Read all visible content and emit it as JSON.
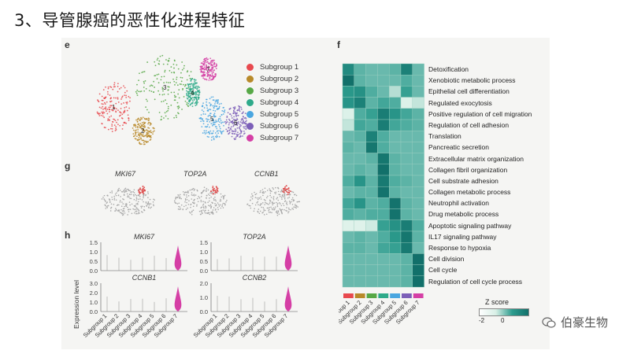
{
  "slide_title": "3、导管腺癌的恶性化进程特征",
  "panels": {
    "e": "e",
    "f": "f",
    "g": "g",
    "h": "h"
  },
  "legend": [
    {
      "label": "Subgroup 1",
      "color": "#e8494e"
    },
    {
      "label": "Subgroup 2",
      "color": "#b88a2a"
    },
    {
      "label": "Subgroup 3",
      "color": "#57a846"
    },
    {
      "label": "Subgroup 4",
      "color": "#2eaa8a"
    },
    {
      "label": "Subgroup 5",
      "color": "#4aa6e0"
    },
    {
      "label": "Subgroup 6",
      "color": "#7c5fb8"
    },
    {
      "label": "Subgroup 7",
      "color": "#d53fa5"
    }
  ],
  "cluster_labels": [
    "1",
    "2",
    "3",
    "4",
    "5",
    "6",
    "7"
  ],
  "genes_g": [
    "MKI67",
    "TOP2A",
    "CCNB1"
  ],
  "genes_h": [
    "MKI67",
    "TOP2A",
    "CCNB1",
    "CCNB2"
  ],
  "violin_yaxis": {
    "top": [
      "1.5",
      "1.0",
      "0.5",
      "0.0"
    ],
    "bottom_left": [
      "3.0",
      "2.0",
      "1.0",
      "0.0"
    ],
    "bottom_right": [
      "2.0",
      "1.0",
      "0.0"
    ]
  },
  "violin_ylabel": "Expression level",
  "subgroup_axis": [
    "Subgroup 1",
    "Subgroup 2",
    "Subgroup 3",
    "Subgroup 4",
    "Subgroup 5",
    "Subgroup 6",
    "Subgroup 7"
  ],
  "heatmap_terms": [
    "Detoxification",
    "Xenobiotic metabolic process",
    "Epithelial cell differentiation",
    "Regulated exocytosis",
    "Positive regulation of cell migration",
    "Regulation of cell adhesion",
    "Translation",
    "Pancreatic secretion",
    "Extracellular matrix organization",
    "Collagen fibril organization",
    "Cell substrate adhesion",
    "Collagen metabolic process",
    "Neutrophil activation",
    "Drug metabolic process",
    "Apoptotic signaling pathway",
    "IL17 signaling pathway",
    "Response to hypoxia",
    "Cell division",
    "Cell cycle",
    "Regulation of cell cycle process"
  ],
  "heatmap_values": [
    [
      1.2,
      0.3,
      0.2,
      0.2,
      0.3,
      1.5,
      0.2
    ],
    [
      2.0,
      0.3,
      0.2,
      0.2,
      0.2,
      0.4,
      0.2
    ],
    [
      0.8,
      1.0,
      0.4,
      0.2,
      -0.4,
      0.6,
      0.2
    ],
    [
      0.9,
      1.5,
      0.3,
      0.5,
      0.4,
      -0.8,
      -0.5
    ],
    [
      -0.8,
      0.4,
      0.6,
      1.6,
      0.9,
      0.5,
      0.3
    ],
    [
      -0.5,
      0.5,
      0.4,
      1.6,
      0.5,
      0.4,
      0.3
    ],
    [
      0.2,
      0.3,
      1.5,
      0.4,
      0.2,
      0.2,
      0.2
    ],
    [
      0.3,
      0.2,
      1.8,
      0.4,
      0.2,
      0.2,
      0.2
    ],
    [
      0.2,
      0.2,
      0.3,
      1.8,
      0.3,
      0.2,
      0.2
    ],
    [
      0.2,
      0.3,
      0.2,
      2.0,
      0.3,
      0.2,
      0.2
    ],
    [
      0.4,
      0.9,
      0.3,
      1.7,
      0.4,
      0.3,
      0.2
    ],
    [
      0.2,
      0.3,
      0.3,
      1.9,
      0.3,
      0.2,
      0.2
    ],
    [
      0.5,
      0.9,
      0.3,
      0.4,
      1.9,
      0.3,
      0.2
    ],
    [
      0.4,
      0.3,
      0.4,
      0.4,
      1.9,
      0.3,
      0.2
    ],
    [
      -0.9,
      -0.9,
      -0.6,
      0.6,
      1.0,
      1.6,
      0.4
    ],
    [
      0.2,
      0.3,
      0.2,
      0.4,
      0.8,
      1.8,
      0.3
    ],
    [
      0.3,
      0.3,
      0.2,
      0.5,
      0.6,
      1.7,
      0.2
    ],
    [
      0.2,
      0.2,
      0.2,
      0.2,
      0.2,
      0.3,
      2.0
    ],
    [
      0.2,
      0.2,
      0.2,
      0.2,
      0.2,
      0.3,
      2.0
    ],
    [
      0.2,
      0.2,
      0.2,
      0.2,
      0.2,
      0.3,
      2.0
    ]
  ],
  "zscore": {
    "title": "Z score",
    "min_label": "-2",
    "mid_label": "0"
  },
  "watermark": "伯豪生物"
}
